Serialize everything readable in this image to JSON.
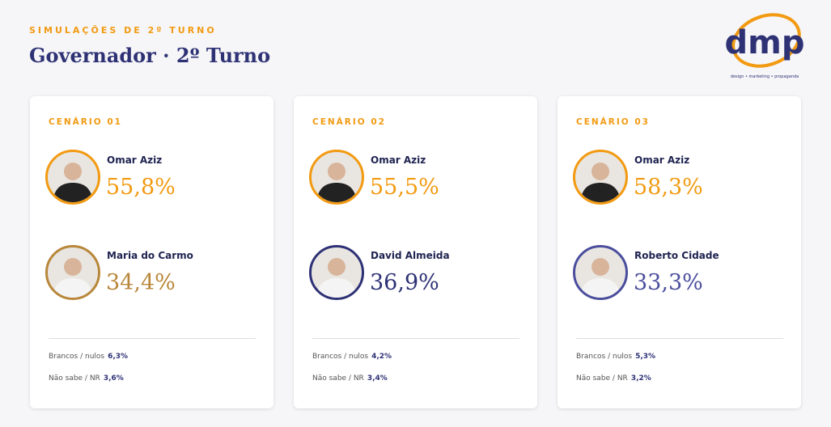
{
  "header": {
    "kicker": "SIMULAÇÕES DE 2º TURNO",
    "title": "Governador · 2º Turno"
  },
  "logo": {
    "text": "dmp",
    "tagline": "design • marketing • propaganda"
  },
  "cards": [
    {
      "label": "CENÁRIO 01",
      "candidates": [
        {
          "name": "Omar Aziz",
          "value": "55,8%",
          "color": "#f29a11"
        },
        {
          "name": "Maria do Carmo",
          "value": "34,4%",
          "color": "#b8873a"
        }
      ],
      "blank_label": "Brancos / nulos",
      "blank_value": "6,3%",
      "unknown_label": "Não sabe / NR",
      "unknown_value": "3,6%"
    },
    {
      "label": "CENÁRIO 02",
      "candidates": [
        {
          "name": "Omar Aziz",
          "value": "55,5%",
          "color": "#f29a11"
        },
        {
          "name": "David Almeida",
          "value": "36,9%",
          "color": "#2e3275"
        }
      ],
      "blank_label": "Brancos / nulos",
      "blank_value": "4,2%",
      "unknown_label": "Não sabe / NR",
      "unknown_value": "3,4%"
    },
    {
      "label": "CENÁRIO 03",
      "candidates": [
        {
          "name": "Omar Aziz",
          "value": "58,3%",
          "color": "#f29a11"
        },
        {
          "name": "Roberto Cidade",
          "value": "33,3%",
          "color": "#4a4e9c"
        }
      ],
      "blank_label": "Brancos / nulos",
      "blank_value": "5,3%",
      "unknown_label": "Não sabe / NR",
      "unknown_value": "3,2%"
    }
  ]
}
